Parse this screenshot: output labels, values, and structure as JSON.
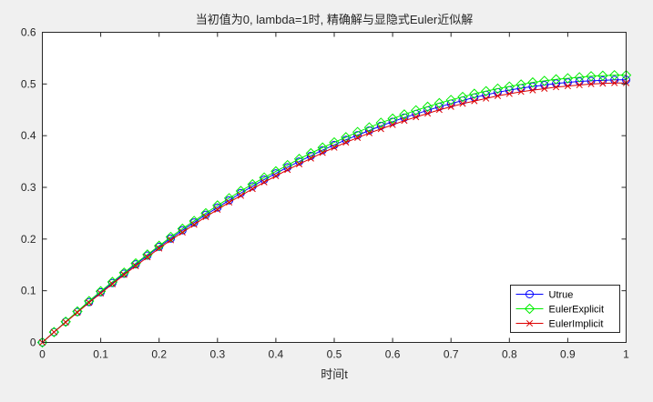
{
  "chart_data": {
    "type": "line",
    "title": "当初值为0, lambda=1时, 精确解与显隐式Euler近似解",
    "xlabel": "时间t",
    "ylabel": "",
    "xlim": [
      0,
      1
    ],
    "ylim": [
      0,
      0.6
    ],
    "xticks": [
      "0",
      "0.1",
      "0.2",
      "0.3",
      "0.4",
      "0.5",
      "0.6",
      "0.7",
      "0.8",
      "0.9",
      "1"
    ],
    "yticks": [
      "0",
      "0.1",
      "0.2",
      "0.3",
      "0.4",
      "0.5",
      "0.6"
    ],
    "grid": false,
    "legend_position": "bottom-right",
    "x": [
      0,
      0.02,
      0.04,
      0.06,
      0.08,
      0.1,
      0.12,
      0.14,
      0.16,
      0.18,
      0.2,
      0.22,
      0.24,
      0.26,
      0.28,
      0.3,
      0.32,
      0.34,
      0.36,
      0.38,
      0.4,
      0.42,
      0.44,
      0.46,
      0.48,
      0.5,
      0.52,
      0.54,
      0.56,
      0.58,
      0.6,
      0.62,
      0.64,
      0.66,
      0.68,
      0.7,
      0.72,
      0.74,
      0.76,
      0.78,
      0.8,
      0.82,
      0.84,
      0.86,
      0.88,
      0.9,
      0.92,
      0.94,
      0.96,
      0.98,
      1
    ],
    "series": [
      {
        "name": "Utrue",
        "color": "#0000ff",
        "marker": "circle",
        "values": [
          0,
          0.02,
          0.04,
          0.059,
          0.078,
          0.097,
          0.115,
          0.133,
          0.151,
          0.168,
          0.185,
          0.201,
          0.217,
          0.232,
          0.247,
          0.261,
          0.275,
          0.289,
          0.302,
          0.315,
          0.327,
          0.339,
          0.35,
          0.361,
          0.372,
          0.382,
          0.392,
          0.401,
          0.41,
          0.419,
          0.427,
          0.435,
          0.442,
          0.449,
          0.456,
          0.462,
          0.468,
          0.474,
          0.479,
          0.484,
          0.488,
          0.492,
          0.495,
          0.498,
          0.501,
          0.503,
          0.505,
          0.506,
          0.507,
          0.508,
          0.508
        ]
      },
      {
        "name": "EulerExplicit",
        "color": "#00ee00",
        "marker": "diamond",
        "values": [
          0,
          0.02,
          0.04,
          0.06,
          0.08,
          0.099,
          0.117,
          0.135,
          0.153,
          0.17,
          0.187,
          0.204,
          0.22,
          0.235,
          0.25,
          0.265,
          0.279,
          0.293,
          0.306,
          0.319,
          0.331,
          0.343,
          0.355,
          0.366,
          0.377,
          0.387,
          0.397,
          0.407,
          0.416,
          0.425,
          0.433,
          0.441,
          0.449,
          0.456,
          0.463,
          0.469,
          0.475,
          0.481,
          0.486,
          0.491,
          0.495,
          0.499,
          0.503,
          0.506,
          0.509,
          0.511,
          0.513,
          0.515,
          0.516,
          0.517,
          0.517
        ]
      },
      {
        "name": "EulerImplicit",
        "color": "#dd0000",
        "marker": "x",
        "values": [
          0,
          0.02,
          0.039,
          0.058,
          0.077,
          0.095,
          0.113,
          0.131,
          0.148,
          0.165,
          0.182,
          0.198,
          0.213,
          0.228,
          0.243,
          0.257,
          0.271,
          0.284,
          0.297,
          0.31,
          0.322,
          0.334,
          0.345,
          0.356,
          0.367,
          0.377,
          0.387,
          0.396,
          0.405,
          0.413,
          0.421,
          0.429,
          0.436,
          0.443,
          0.45,
          0.456,
          0.462,
          0.467,
          0.472,
          0.477,
          0.481,
          0.485,
          0.488,
          0.491,
          0.494,
          0.496,
          0.498,
          0.5,
          0.501,
          0.502,
          0.502
        ]
      }
    ]
  }
}
